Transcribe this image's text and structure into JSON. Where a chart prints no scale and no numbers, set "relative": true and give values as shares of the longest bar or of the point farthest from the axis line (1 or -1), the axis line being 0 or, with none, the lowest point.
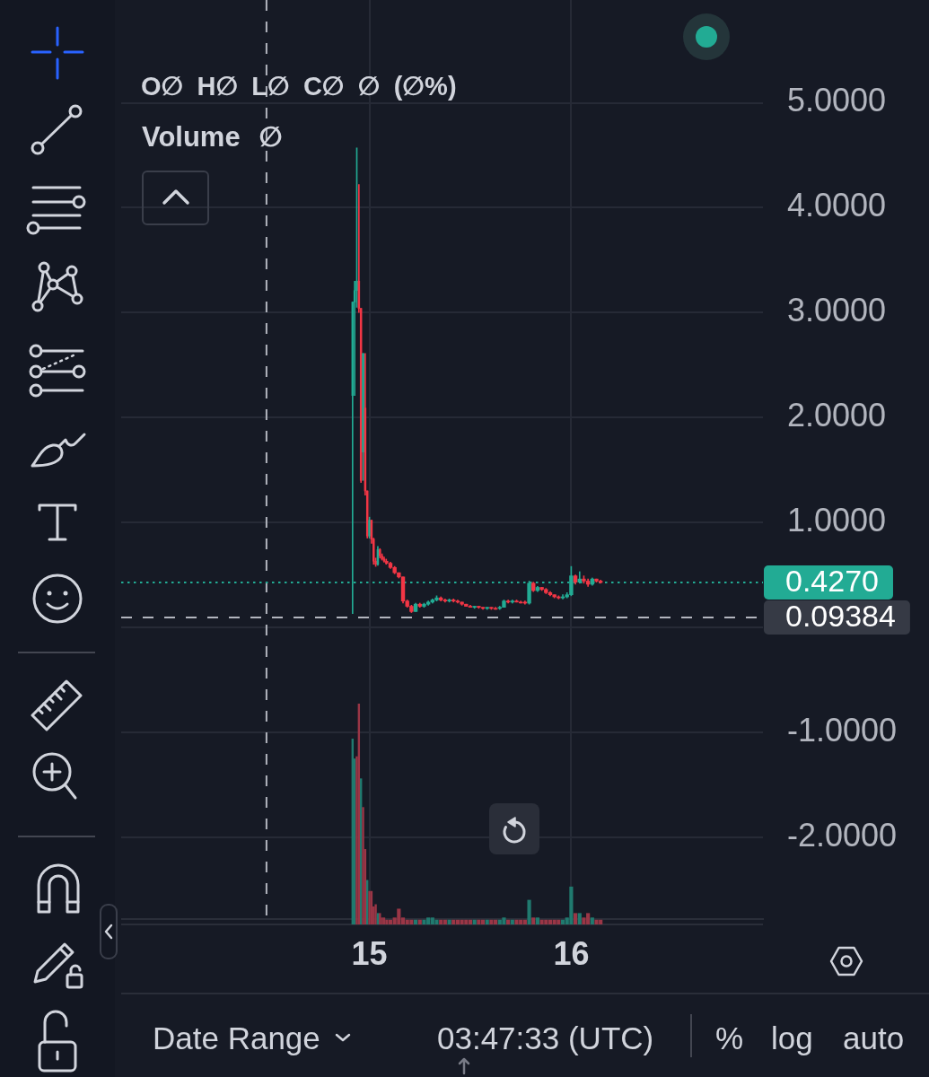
{
  "chart_data": [
    {
      "type": "candlestick",
      "x": [
        14.9167,
        14.9271,
        14.9375,
        14.9479,
        14.9583,
        14.9688,
        14.9792,
        14.9896,
        15,
        15.0104,
        15.0208,
        15.0313,
        15.0417,
        15.0521,
        15.0625,
        15.0729,
        15.0833,
        15.1042,
        15.125,
        15.1458,
        15.1667,
        15.1875,
        15.2083,
        15.2292,
        15.25,
        15.2708,
        15.2917,
        15.3125,
        15.3333,
        15.3542,
        15.375,
        15.3958,
        15.4167,
        15.4375,
        15.4583,
        15.4792,
        15.5,
        15.5208,
        15.5417,
        15.5625,
        15.5833,
        15.6042,
        15.625,
        15.6458,
        15.6667,
        15.6875,
        15.7083,
        15.7292,
        15.75,
        15.7708,
        15.7917,
        15.8125,
        15.8333,
        15.8542,
        15.875,
        15.8958,
        15.9167,
        15.9375,
        15.9583,
        15.9792,
        16,
        16.0208,
        16.0417,
        16.0625,
        16.0833,
        16.1042,
        16.125,
        16.1458
      ],
      "ohlc": [
        [
          2.21,
          3.1,
          0.13,
          3.1
        ],
        [
          3.1,
          3.3,
          2.21,
          3.21
        ],
        [
          3.21,
          4.57,
          3.05,
          3.3
        ],
        [
          3.3,
          4.22,
          3,
          3.04
        ],
        [
          3.04,
          3.04,
          1.38,
          1.4
        ],
        [
          1.67,
          2.61,
          1.4,
          2.61
        ],
        [
          2.09,
          2.61,
          1.26,
          1.3
        ],
        [
          1.3,
          1.3,
          0.85,
          0.87
        ],
        [
          0.87,
          1.05,
          0.85,
          1.02
        ],
        [
          1.02,
          1.02,
          0.8,
          0.84
        ],
        [
          0.84,
          0.85,
          0.6,
          0.63
        ],
        [
          0.63,
          0.66,
          0.58,
          0.6
        ],
        [
          0.6,
          0.77,
          0.59,
          0.74
        ],
        [
          0.74,
          0.75,
          0.66,
          0.68
        ],
        [
          0.68,
          0.7,
          0.64,
          0.65
        ],
        [
          0.65,
          0.67,
          0.62,
          0.63
        ],
        [
          0.63,
          0.65,
          0.6,
          0.61
        ],
        [
          0.61,
          0.62,
          0.56,
          0.57
        ],
        [
          0.57,
          0.58,
          0.51,
          0.52
        ],
        [
          0.52,
          0.52,
          0.47,
          0.48
        ],
        [
          0.48,
          0.48,
          0.23,
          0.25
        ],
        [
          0.25,
          0.26,
          0.19,
          0.2
        ],
        [
          0.2,
          0.21,
          0.14,
          0.15
        ],
        [
          0.15,
          0.23,
          0.15,
          0.22
        ],
        [
          0.22,
          0.23,
          0.19,
          0.2
        ],
        [
          0.2,
          0.23,
          0.19,
          0.22
        ],
        [
          0.22,
          0.25,
          0.21,
          0.24
        ],
        [
          0.24,
          0.27,
          0.23,
          0.26
        ],
        [
          0.26,
          0.3,
          0.25,
          0.28
        ],
        [
          0.28,
          0.29,
          0.25,
          0.26
        ],
        [
          0.26,
          0.27,
          0.24,
          0.25
        ],
        [
          0.25,
          0.27,
          0.24,
          0.26
        ],
        [
          0.26,
          0.27,
          0.24,
          0.25
        ],
        [
          0.25,
          0.26,
          0.23,
          0.24
        ],
        [
          0.24,
          0.24,
          0.21,
          0.22
        ],
        [
          0.22,
          0.22,
          0.2,
          0.2
        ],
        [
          0.2,
          0.21,
          0.19,
          0.19
        ],
        [
          0.19,
          0.2,
          0.18,
          0.2
        ],
        [
          0.2,
          0.2,
          0.18,
          0.19
        ],
        [
          0.19,
          0.19,
          0.17,
          0.18
        ],
        [
          0.18,
          0.19,
          0.17,
          0.19
        ],
        [
          0.19,
          0.19,
          0.17,
          0.18
        ],
        [
          0.18,
          0.19,
          0.17,
          0.18
        ],
        [
          0.18,
          0.2,
          0.17,
          0.19
        ],
        [
          0.19,
          0.26,
          0.19,
          0.25
        ],
        [
          0.25,
          0.26,
          0.23,
          0.24
        ],
        [
          0.24,
          0.26,
          0.23,
          0.25
        ],
        [
          0.25,
          0.26,
          0.24,
          0.24
        ],
        [
          0.24,
          0.25,
          0.23,
          0.24
        ],
        [
          0.24,
          0.25,
          0.22,
          0.23
        ],
        [
          0.23,
          0.44,
          0.22,
          0.42
        ],
        [
          0.42,
          0.43,
          0.34,
          0.35
        ],
        [
          0.35,
          0.39,
          0.34,
          0.38
        ],
        [
          0.38,
          0.38,
          0.35,
          0.36
        ],
        [
          0.36,
          0.37,
          0.32,
          0.33
        ],
        [
          0.33,
          0.34,
          0.3,
          0.31
        ],
        [
          0.31,
          0.31,
          0.28,
          0.29
        ],
        [
          0.29,
          0.3,
          0.27,
          0.28
        ],
        [
          0.28,
          0.31,
          0.27,
          0.29
        ],
        [
          0.29,
          0.33,
          0.28,
          0.31
        ],
        [
          0.31,
          0.58,
          0.3,
          0.49
        ],
        [
          0.49,
          0.5,
          0.41,
          0.43
        ],
        [
          0.43,
          0.53,
          0.42,
          0.46
        ],
        [
          0.46,
          0.49,
          0.42,
          0.44
        ],
        [
          0.44,
          0.46,
          0.39,
          0.41
        ],
        [
          0.41,
          0.47,
          0.4,
          0.46
        ],
        [
          0.46,
          0.46,
          0.43,
          0.44
        ],
        [
          0.44,
          0.45,
          0.42,
          0.427
        ]
      ],
      "colors": [
        "#22ab94",
        "#22ab94",
        "#22ab94",
        "#f23645",
        "#f23645",
        "#22ab94",
        "#f23645",
        "#f23645",
        "#22ab94",
        "#f23645",
        "#f23645",
        "#f23645",
        "#22ab94",
        "#f23645",
        "#f23645",
        "#f23645",
        "#f23645",
        "#f23645",
        "#f23645",
        "#f23645",
        "#f23645",
        "#f23645",
        "#f23645",
        "#22ab94",
        "#f23645",
        "#22ab94",
        "#22ab94",
        "#22ab94",
        "#22ab94",
        "#f23645",
        "#f23645",
        "#22ab94",
        "#f23645",
        "#f23645",
        "#f23645",
        "#f23645",
        "#f23645",
        "#22ab94",
        "#f23645",
        "#f23645",
        "#22ab94",
        "#f23645",
        "#f23645",
        "#22ab94",
        "#22ab94",
        "#f23645",
        "#22ab94",
        "#f23645",
        "#f23645",
        "#f23645",
        "#22ab94",
        "#f23645",
        "#22ab94",
        "#f23645",
        "#f23645",
        "#f23645",
        "#f23645",
        "#f23645",
        "#22ab94",
        "#22ab94",
        "#22ab94",
        "#f23645",
        "#22ab94",
        "#f23645",
        "#f23645",
        "#22ab94",
        "#f23645",
        "#f23645"
      ],
      "xlim": [
        13.77,
        16.95
      ],
      "xticks": [
        15,
        16
      ],
      "ylim": [
        -2.78,
        5.98
      ],
      "yticks": [
        {
          "value": -2,
          "label": "-2.0000"
        },
        {
          "value": -1,
          "label": "-1.0000"
        },
        {
          "value": 0,
          "label": null
        },
        {
          "value": 1,
          "label": "1.0000"
        },
        {
          "value": 2,
          "label": "2.0000"
        },
        {
          "value": 3,
          "label": "3.0000"
        },
        {
          "value": 4,
          "label": "4.0000"
        },
        {
          "value": 5,
          "label": "5.0000"
        }
      ],
      "grid": true,
      "ref_lines": [
        {
          "axis": "x",
          "value": 14.49,
          "color": "#b2b5be",
          "line_style": "dashed"
        },
        {
          "axis": "y",
          "value": 0.427,
          "label": "0.4270",
          "color": "#22ab94",
          "line_style": "dotted"
        },
        {
          "axis": "y",
          "value": 0.09384,
          "label": "0.09384",
          "color": "#b2b5be",
          "line_style": "dashed"
        }
      ],
      "annotations": [
        "O∅ H∅ L∅ C∅ ∅ (∅%)",
        "Date Range",
        "03:47:33 (UTC)",
        "%",
        "log",
        "auto"
      ]
    },
    {
      "type": "bar",
      "title": "Volume ∅",
      "relative": true,
      "x": [
        14.9167,
        14.9271,
        14.9375,
        14.9479,
        14.9583,
        14.9688,
        14.9792,
        14.9896,
        15,
        15.0104,
        15.0208,
        15.0313,
        15.0417,
        15.0521,
        15.0625,
        15.0729,
        15.0833,
        15.1042,
        15.125,
        15.1458,
        15.1667,
        15.1875,
        15.2083,
        15.2292,
        15.25,
        15.2708,
        15.2917,
        15.3125,
        15.3333,
        15.3542,
        15.375,
        15.3958,
        15.4167,
        15.4375,
        15.4583,
        15.4792,
        15.5,
        15.5208,
        15.5417,
        15.5625,
        15.5833,
        15.6042,
        15.625,
        15.6458,
        15.6667,
        15.6875,
        15.7083,
        15.7292,
        15.75,
        15.7708,
        15.7917,
        15.8125,
        15.8333,
        15.8542,
        15.875,
        15.8958,
        15.9167,
        15.9375,
        15.9583,
        15.9792,
        16,
        16.0208,
        16.0417,
        16.0625,
        16.0833,
        16.1042,
        16.125,
        16.1458
      ],
      "values": [
        0.84,
        0.75,
        0.76,
        1,
        0.66,
        0.53,
        0.34,
        0.2,
        0.15,
        0.15,
        0.08,
        0.09,
        0.05,
        0.05,
        0.03,
        0.03,
        0.02,
        0.02,
        0.03,
        0.07,
        0.03,
        0.02,
        0.02,
        0.02,
        0.02,
        0.02,
        0.03,
        0.03,
        0.02,
        0.02,
        0.02,
        0.02,
        0.02,
        0.02,
        0.02,
        0.02,
        0.02,
        0.02,
        0.02,
        0.02,
        0.02,
        0.02,
        0.02,
        0.02,
        0.03,
        0.02,
        0.02,
        0.02,
        0.02,
        0.02,
        0.11,
        0.03,
        0.03,
        0.02,
        0.02,
        0.02,
        0.02,
        0.02,
        0.02,
        0.03,
        0.17,
        0.05,
        0.05,
        0.03,
        0.05,
        0.03,
        0.02,
        0.02
      ],
      "colors": [
        "#207a6f",
        "#207a6f",
        "#9a3646",
        "#9a3646",
        "#207a6f",
        "#9a3646",
        "#9a3646",
        "#207a6f",
        "#9a3646",
        "#9a3646",
        "#9a3646",
        "#9a3646",
        "#207a6f",
        "#9a3646",
        "#9a3646",
        "#9a3646",
        "#9a3646",
        "#9a3646",
        "#9a3646",
        "#9a3646",
        "#9a3646",
        "#9a3646",
        "#9a3646",
        "#207a6f",
        "#9a3646",
        "#207a6f",
        "#207a6f",
        "#207a6f",
        "#207a6f",
        "#9a3646",
        "#9a3646",
        "#207a6f",
        "#9a3646",
        "#9a3646",
        "#9a3646",
        "#9a3646",
        "#9a3646",
        "#207a6f",
        "#9a3646",
        "#9a3646",
        "#207a6f",
        "#9a3646",
        "#9a3646",
        "#207a6f",
        "#207a6f",
        "#9a3646",
        "#207a6f",
        "#9a3646",
        "#9a3646",
        "#9a3646",
        "#207a6f",
        "#9a3646",
        "#207a6f",
        "#9a3646",
        "#9a3646",
        "#9a3646",
        "#9a3646",
        "#9a3646",
        "#207a6f",
        "#207a6f",
        "#207a6f",
        "#9a3646",
        "#207a6f",
        "#9a3646",
        "#9a3646",
        "#207a6f",
        "#9a3646",
        "#9a3646"
      ],
      "xlim": [
        13.77,
        16.95
      ],
      "tick_labels": false
    }
  ]
}
